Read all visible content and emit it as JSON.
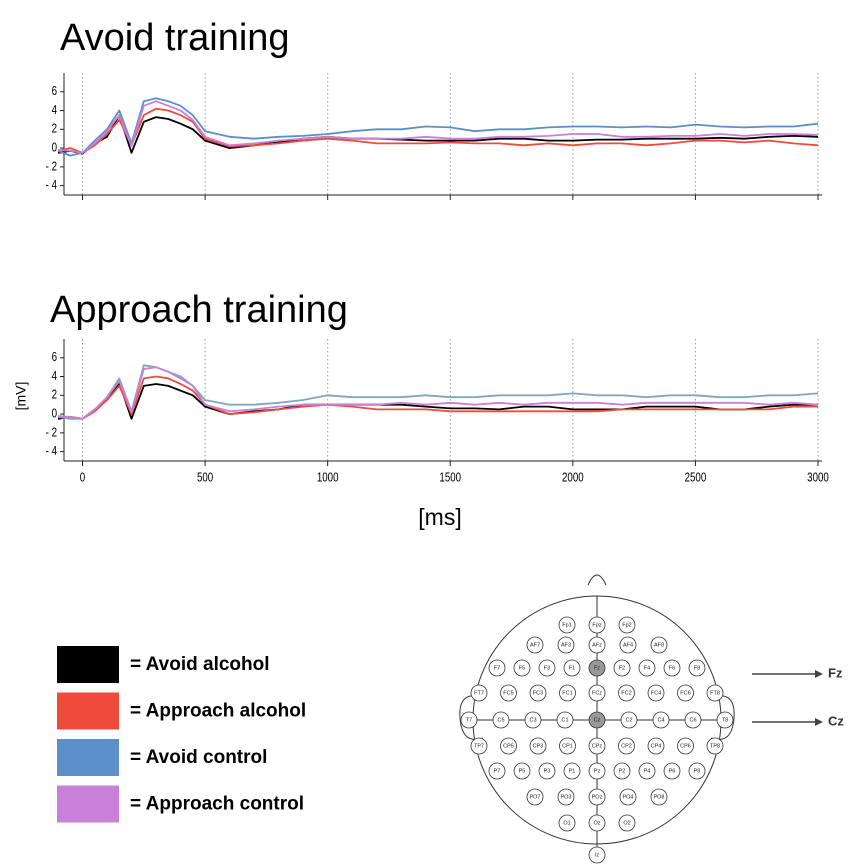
{
  "chart_data": [
    {
      "type": "line",
      "title": "Avoid training",
      "x": [
        -100,
        -50,
        0,
        50,
        100,
        150,
        200,
        250,
        300,
        350,
        400,
        450,
        500,
        600,
        700,
        800,
        900,
        1000,
        1100,
        1200,
        1300,
        1400,
        1500,
        1600,
        1700,
        1800,
        1900,
        2000,
        2100,
        2200,
        2300,
        2400,
        2500,
        2600,
        2700,
        2800,
        2900,
        3000
      ],
      "series": [
        {
          "name": "= Avoid alcohol",
          "color": "#000000",
          "values": [
            -0.5,
            -0.3,
            -0.6,
            0.5,
            1.2,
            3.5,
            -0.5,
            2.8,
            3.3,
            3.1,
            2.6,
            2.0,
            0.8,
            0.0,
            0.3,
            0.6,
            1.0,
            1.2,
            1.0,
            1.0,
            0.9,
            0.8,
            0.8,
            0.8,
            1.0,
            1.0,
            0.8,
            0.8,
            0.9,
            0.9,
            1.0,
            1.0,
            1.0,
            1.1,
            1.0,
            1.2,
            1.3,
            1.2
          ]
        },
        {
          "name": "= Approach alcohol",
          "color": "#f04a3c",
          "values": [
            -0.3,
            0,
            -0.5,
            0.3,
            1.5,
            3.0,
            0.3,
            3.5,
            4.2,
            4.0,
            3.5,
            2.8,
            1.0,
            0.2,
            0.3,
            0.5,
            0.8,
            1.0,
            0.8,
            0.5,
            0.5,
            0.5,
            0.6,
            0.5,
            0.5,
            0.3,
            0.5,
            0.3,
            0.5,
            0.5,
            0.3,
            0.5,
            0.8,
            0.8,
            0.6,
            0.8,
            0.5,
            0.3
          ]
        },
        {
          "name": "= Avoid control",
          "color": "#5a8fc8",
          "values": [
            -0.3,
            -0.8,
            -0.5,
            0.8,
            2.0,
            4.0,
            0.5,
            5.0,
            5.3,
            5.0,
            4.5,
            3.5,
            1.8,
            1.2,
            1.0,
            1.2,
            1.3,
            1.5,
            1.8,
            2.0,
            2.0,
            2.3,
            2.2,
            1.8,
            2.0,
            2.0,
            2.2,
            2.3,
            2.3,
            2.2,
            2.3,
            2.2,
            2.5,
            2.3,
            2.2,
            2.3,
            2.3,
            2.6
          ]
        },
        {
          "name": "= Approach control",
          "color": "#c880d8",
          "values": [
            -0.2,
            -0.3,
            -0.5,
            0.5,
            1.8,
            3.5,
            0.2,
            4.5,
            5.0,
            4.5,
            4.0,
            3.0,
            1.2,
            0.3,
            0.5,
            0.8,
            1.0,
            1.2,
            1.0,
            1.0,
            1.0,
            1.2,
            1.0,
            1.0,
            1.2,
            1.2,
            1.3,
            1.5,
            1.5,
            1.2,
            1.2,
            1.3,
            1.3,
            1.5,
            1.3,
            1.5,
            1.5,
            1.4
          ]
        }
      ],
      "xlim": [
        -100,
        3000
      ],
      "ylim": [
        -5,
        8
      ],
      "xticks": [
        0,
        500,
        1000,
        1500,
        2000,
        2500,
        3000
      ],
      "yticks": [
        6,
        4,
        2,
        0,
        {
          "value": -2,
          "label": "- 2"
        },
        {
          "value": -4,
          "label": "- 4"
        }
      ],
      "grid": true
    },
    {
      "type": "line",
      "title": "Approach training",
      "ylabel": "[mV]",
      "xlabel": "[ms]",
      "x": [
        -100,
        -50,
        0,
        50,
        100,
        150,
        200,
        250,
        300,
        350,
        400,
        450,
        500,
        600,
        700,
        800,
        900,
        1000,
        1100,
        1200,
        1300,
        1400,
        1500,
        1600,
        1700,
        1800,
        1900,
        2000,
        2100,
        2200,
        2300,
        2400,
        2500,
        2600,
        2700,
        2800,
        2900,
        3000
      ],
      "series": [
        {
          "color": "#000000",
          "values": [
            -0.5,
            -0.3,
            -0.5,
            0.5,
            1.5,
            3.3,
            -0.5,
            3.0,
            3.2,
            3.0,
            2.5,
            2.0,
            0.8,
            0.0,
            0.3,
            0.5,
            1.0,
            1.0,
            1.0,
            1.0,
            1.0,
            0.8,
            0.6,
            0.6,
            0.5,
            0.8,
            0.8,
            0.5,
            0.5,
            0.5,
            0.8,
            0.8,
            0.8,
            0.5,
            0.5,
            0.8,
            1.0,
            1.0
          ]
        },
        {
          "color": "#f04a3c",
          "values": [
            -0.3,
            -0.3,
            -0.5,
            0.3,
            1.5,
            3.0,
            0.0,
            3.8,
            4.0,
            3.8,
            3.2,
            2.5,
            1.0,
            0.0,
            0.2,
            0.5,
            0.8,
            1.0,
            0.8,
            0.5,
            0.5,
            0.5,
            0.3,
            0.3,
            0.3,
            0.3,
            0.3,
            0.3,
            0.3,
            0.5,
            0.5,
            0.5,
            0.5,
            0.5,
            0.5,
            0.5,
            0.8,
            0.8
          ]
        },
        {
          "color": "#7fa8b8",
          "values": [
            -0.3,
            -0.5,
            -0.5,
            0.5,
            1.8,
            3.8,
            0.3,
            5.2,
            5.0,
            4.5,
            3.8,
            3.0,
            1.5,
            1.0,
            1.0,
            1.2,
            1.5,
            2.0,
            1.8,
            1.8,
            1.8,
            2.0,
            1.8,
            1.8,
            2.0,
            2.0,
            2.0,
            2.2,
            2.0,
            2.0,
            1.8,
            2.0,
            2.0,
            1.8,
            1.8,
            2.0,
            2.0,
            2.2
          ]
        },
        {
          "color": "#c880d8",
          "values": [
            -0.2,
            -0.3,
            -0.5,
            0.5,
            1.8,
            3.5,
            0.2,
            4.8,
            5.0,
            4.5,
            4.0,
            3.0,
            1.0,
            0.3,
            0.5,
            0.8,
            1.0,
            1.0,
            1.0,
            1.0,
            1.2,
            1.0,
            1.2,
            1.0,
            1.2,
            1.0,
            1.2,
            1.2,
            1.2,
            1.0,
            1.2,
            1.2,
            1.2,
            1.2,
            1.2,
            1.0,
            1.2,
            1.0
          ]
        }
      ],
      "xlim": [
        -100,
        3000
      ],
      "ylim": [
        -5,
        8
      ],
      "xticks": [
        0,
        500,
        1000,
        1500,
        2000,
        2500,
        3000
      ],
      "yticks": [
        6,
        4,
        2,
        0,
        {
          "value": -2,
          "label": "- 2"
        },
        {
          "value": -4,
          "label": "- 4"
        }
      ],
      "grid": true
    }
  ],
  "diagram": {
    "rows": [
      [
        {
          "label": "Fp1"
        },
        {
          "label": "Fpz"
        },
        {
          "label": "Fp2"
        }
      ],
      [
        {
          "label": "AF7"
        },
        {
          "label": "AF3"
        },
        {
          "label": "AFz"
        },
        {
          "label": "AF4"
        },
        {
          "label": "AF8"
        }
      ],
      [
        {
          "label": "F7"
        },
        {
          "label": "F5"
        },
        {
          "label": "F3"
        },
        {
          "label": "F1"
        },
        {
          "label": "Fz",
          "highlight": true
        },
        {
          "label": "F2"
        },
        {
          "label": "F4"
        },
        {
          "label": "F6"
        },
        {
          "label": "F8"
        }
      ],
      [
        {
          "label": "FT7"
        },
        {
          "label": "FC5"
        },
        {
          "label": "FC3"
        },
        {
          "label": "FC1"
        },
        {
          "label": "FCz"
        },
        {
          "label": "FC2"
        },
        {
          "label": "FC4"
        },
        {
          "label": "FC6"
        },
        {
          "label": "FT8"
        }
      ],
      [
        {
          "label": "T7"
        },
        {
          "label": "C5"
        },
        {
          "label": "C3"
        },
        {
          "label": "C1"
        },
        {
          "label": "Cz",
          "highlight": true
        },
        {
          "label": "C2"
        },
        {
          "label": "C4"
        },
        {
          "label": "C6"
        },
        {
          "label": "T8"
        }
      ],
      [
        {
          "label": "TP7"
        },
        {
          "label": "CP5"
        },
        {
          "label": "CP3"
        },
        {
          "label": "CP1"
        },
        {
          "label": "CPz"
        },
        {
          "label": "CP2"
        },
        {
          "label": "CP4"
        },
        {
          "label": "CP6"
        },
        {
          "label": "TP8"
        }
      ],
      [
        {
          "label": "P7"
        },
        {
          "label": "P5"
        },
        {
          "label": "P3"
        },
        {
          "label": "P1"
        },
        {
          "label": "Pz"
        },
        {
          "label": "P2"
        },
        {
          "label": "P4"
        },
        {
          "label": "P6"
        },
        {
          "label": "P8"
        }
      ],
      [
        {
          "label": "PO7"
        },
        {
          "label": "PO3"
        },
        {
          "label": "POz"
        },
        {
          "label": "PO4"
        },
        {
          "label": "PO8"
        }
      ],
      [
        {
          "label": "O1"
        },
        {
          "label": "Oz"
        },
        {
          "label": "O2"
        }
      ],
      [
        {
          "label": "Iz"
        }
      ]
    ],
    "pointers": [
      "Fz",
      "Cz"
    ]
  }
}
